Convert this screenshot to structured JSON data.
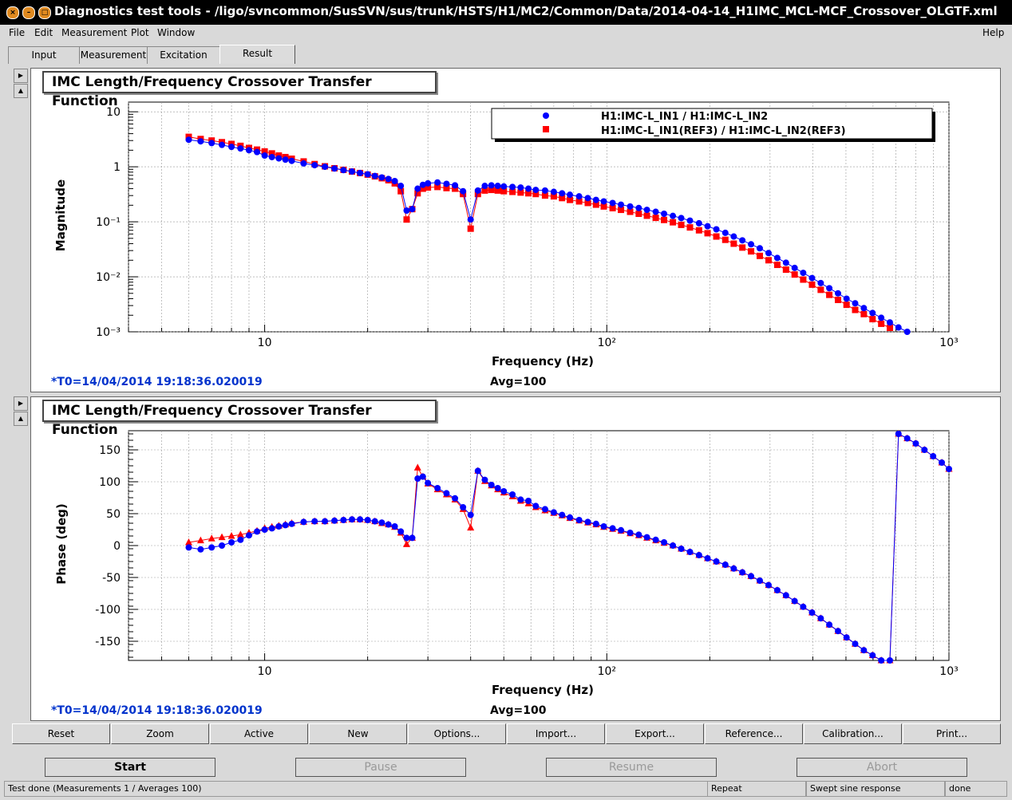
{
  "window": {
    "title": "Diagnostics test tools - /ligo/svncommon/SusSVN/sus/trunk/HSTS/H1/MC2/Common/Data/2014-04-14_H1IMC_MCL-MCF_Crossover_OLGTF.xml"
  },
  "menu": {
    "file": "File",
    "edit": "Edit",
    "measurement": "Measurement",
    "plot": "Plot",
    "window": "Window",
    "help": "Help"
  },
  "tabs": [
    "Input",
    "Measurement",
    "Excitation",
    "Result"
  ],
  "panel1": {
    "title": "IMC Length/Frequency Crossover Transfer Function",
    "ylabel": "Magnitude",
    "xlabel": "Frequency (Hz)",
    "t0": "*T0=14/04/2014 19:18:36.020019",
    "avg": "Avg=100"
  },
  "panel2": {
    "title": "IMC Length/Frequency Crossover Transfer Function",
    "ylabel": "Phase (deg)",
    "xlabel": "Frequency (Hz)",
    "t0": "*T0=14/04/2014 19:18:36.020019",
    "avg": "Avg=100"
  },
  "legend": {
    "series1": "H1:IMC-L_IN1 / H1:IMC-L_IN2",
    "series2": "H1:IMC-L_IN1(REF3) / H1:IMC-L_IN2(REF3)"
  },
  "buttons": [
    "Reset",
    "Zoom",
    "Active",
    "New",
    "Options...",
    "Import...",
    "Export...",
    "Reference...",
    "Calibration...",
    "Print..."
  ],
  "controls": {
    "start": "Start",
    "pause": "Pause",
    "resume": "Resume",
    "abort": "Abort"
  },
  "status": {
    "main": "Test done (Measurements 1 / Averages 100)",
    "mode": "Repeat",
    "type": "Swept sine response",
    "state": "done"
  },
  "colors": {
    "series1": "#0000ff",
    "series2": "#ff0000",
    "t0": "#0033cc"
  },
  "chart_data": [
    {
      "type": "scatter",
      "title": "IMC Length/Frequency Crossover Transfer Function",
      "xlabel": "Frequency (Hz)",
      "ylabel": "Magnitude",
      "xscale": "log",
      "yscale": "log",
      "xlim": [
        4,
        1000
      ],
      "ylim": [
        0.001,
        15
      ],
      "xticks": [
        "10",
        "10²",
        "10³"
      ],
      "yticks": [
        "10",
        "1",
        "10⁻¹",
        "10⁻²",
        "10⁻³"
      ],
      "grid": true,
      "legend": "top-right",
      "series": [
        {
          "name": "H1:IMC-L_IN1 / H1:IMC-L_IN2",
          "marker": "circle",
          "x": [
            6,
            6.5,
            7,
            7.5,
            8,
            8.5,
            9,
            9.5,
            10,
            10.5,
            11,
            11.5,
            12,
            13,
            14,
            15,
            16,
            17,
            18,
            19,
            20,
            21,
            22,
            23,
            24,
            25,
            26,
            27,
            28,
            29,
            30,
            32,
            34,
            36,
            38,
            40,
            42,
            44,
            46,
            48,
            50,
            53,
            56,
            59,
            62,
            66,
            70,
            74,
            78,
            83,
            88,
            93,
            98,
            104,
            110,
            117,
            124,
            131,
            139,
            147,
            156,
            165,
            175,
            186,
            197,
            209,
            222,
            235,
            249,
            264,
            280,
            297,
            315,
            334,
            354,
            375,
            398,
            422,
            447,
            474,
            502,
            532,
            564,
            598,
            634,
            672,
            712,
            755,
            800
          ],
          "y": [
            3.1,
            2.9,
            2.7,
            2.5,
            2.3,
            2.15,
            2.0,
            1.85,
            1.6,
            1.5,
            1.42,
            1.35,
            1.28,
            1.15,
            1.07,
            1.0,
            0.93,
            0.87,
            0.82,
            0.77,
            0.73,
            0.68,
            0.64,
            0.6,
            0.55,
            0.45,
            0.16,
            0.17,
            0.4,
            0.47,
            0.5,
            0.52,
            0.49,
            0.46,
            0.36,
            0.11,
            0.37,
            0.45,
            0.46,
            0.45,
            0.44,
            0.43,
            0.42,
            0.4,
            0.38,
            0.37,
            0.35,
            0.33,
            0.31,
            0.29,
            0.27,
            0.25,
            0.235,
            0.22,
            0.205,
            0.19,
            0.178,
            0.165,
            0.152,
            0.14,
            0.128,
            0.117,
            0.105,
            0.094,
            0.083,
            0.073,
            0.063,
            0.054,
            0.046,
            0.039,
            0.033,
            0.027,
            0.022,
            0.018,
            0.0145,
            0.0118,
            0.0095,
            0.0077,
            0.0062,
            0.005,
            0.004,
            0.0033,
            0.0027,
            0.0022,
            0.0018,
            0.00148,
            0.0012,
            0.001,
            0.00083
          ]
        },
        {
          "name": "H1:IMC-L_IN1(REF3) / H1:IMC-L_IN2(REF3)",
          "marker": "square",
          "x": [
            6,
            6.5,
            7,
            7.5,
            8,
            8.5,
            9,
            9.5,
            10,
            10.5,
            11,
            11.5,
            12,
            13,
            14,
            15,
            16,
            17,
            18,
            19,
            20,
            21,
            22,
            23,
            24,
            25,
            26,
            27,
            28,
            29,
            30,
            32,
            34,
            36,
            38,
            40,
            42,
            44,
            46,
            48,
            50,
            53,
            56,
            59,
            62,
            66,
            70,
            74,
            78,
            83,
            88,
            93,
            98,
            104,
            110,
            117,
            124,
            131,
            139,
            147,
            156,
            165,
            175,
            186,
            197,
            209,
            222,
            235,
            249,
            264,
            280,
            297,
            315,
            334,
            354,
            375,
            398,
            422,
            447,
            474,
            502,
            532,
            564,
            598,
            634,
            672,
            712,
            755
          ],
          "y": [
            3.5,
            3.2,
            3.0,
            2.8,
            2.6,
            2.4,
            2.2,
            2.05,
            1.9,
            1.75,
            1.6,
            1.5,
            1.4,
            1.25,
            1.12,
            1.02,
            0.94,
            0.88,
            0.82,
            0.77,
            0.72,
            0.67,
            0.62,
            0.57,
            0.5,
            0.36,
            0.11,
            0.17,
            0.33,
            0.4,
            0.42,
            0.43,
            0.41,
            0.4,
            0.32,
            0.075,
            0.32,
            0.37,
            0.38,
            0.37,
            0.36,
            0.35,
            0.34,
            0.33,
            0.32,
            0.3,
            0.29,
            0.27,
            0.25,
            0.235,
            0.22,
            0.205,
            0.19,
            0.177,
            0.165,
            0.152,
            0.14,
            0.129,
            0.118,
            0.108,
            0.098,
            0.088,
            0.079,
            0.07,
            0.062,
            0.054,
            0.047,
            0.04,
            0.034,
            0.029,
            0.024,
            0.02,
            0.0165,
            0.0135,
            0.011,
            0.0089,
            0.0072,
            0.0058,
            0.0047,
            0.0038,
            0.0031,
            0.0025,
            0.0021,
            0.0017,
            0.0014,
            0.00118,
            0.00098,
            0.0008
          ]
        }
      ]
    },
    {
      "type": "scatter",
      "title": "IMC Length/Frequency Crossover Transfer Function",
      "xlabel": "Frequency (Hz)",
      "ylabel": "Phase (deg)",
      "xscale": "log",
      "xlim": [
        4,
        1000
      ],
      "ylim": [
        -180,
        180
      ],
      "xticks": [
        "10",
        "10²",
        "10³"
      ],
      "yticks": [
        "150",
        "100",
        "50",
        "0",
        "-50",
        "-100",
        "-150"
      ],
      "grid": true,
      "series": [
        {
          "name": "H1:IMC-L_IN1 / H1:IMC-L_IN2",
          "marker": "circle",
          "x": [
            6,
            6.5,
            7,
            7.5,
            8,
            8.5,
            9,
            9.5,
            10,
            10.5,
            11,
            11.5,
            12,
            13,
            14,
            15,
            16,
            17,
            18,
            19,
            20,
            21,
            22,
            23,
            24,
            25,
            26,
            27,
            28,
            29,
            30,
            32,
            34,
            36,
            38,
            40,
            42,
            44,
            46,
            48,
            50,
            53,
            56,
            59,
            62,
            66,
            70,
            74,
            78,
            83,
            88,
            93,
            98,
            104,
            110,
            117,
            124,
            131,
            139,
            147,
            156,
            165,
            175,
            186,
            197,
            209,
            222,
            235,
            249,
            264,
            280,
            297,
            315,
            334,
            354,
            375,
            398,
            422,
            447,
            474,
            502,
            532,
            564,
            598,
            634,
            672,
            712,
            755,
            800,
            848,
            899,
            953,
            1000
          ],
          "y": [
            -3,
            -6,
            -3,
            0,
            5,
            9,
            16,
            22,
            25,
            27,
            30,
            32,
            34,
            37,
            38,
            38,
            39,
            40,
            41,
            41,
            40,
            38,
            36,
            33,
            30,
            22,
            12,
            12,
            105,
            108,
            98,
            90,
            82,
            74,
            60,
            48,
            117,
            103,
            95,
            90,
            85,
            80,
            72,
            70,
            62,
            57,
            52,
            48,
            44,
            40,
            37,
            34,
            30,
            27,
            24,
            20,
            17,
            13,
            9,
            5,
            0,
            -5,
            -10,
            -15,
            -20,
            -25,
            -30,
            -36,
            -42,
            -48,
            -55,
            -62,
            -70,
            -78,
            -87,
            -96,
            -105,
            -114,
            -124,
            -134,
            -144,
            -154,
            -164,
            -172,
            -180,
            -180,
            175,
            168,
            160,
            150,
            140,
            130,
            120
          ]
        },
        {
          "name": "H1:IMC-L_IN1(REF3) / H1:IMC-L_IN2(REF3)",
          "marker": "triangle",
          "x": [
            6,
            6.5,
            7,
            7.5,
            8,
            8.5,
            9,
            9.5,
            10,
            10.5,
            11,
            11.5,
            12,
            13,
            14,
            15,
            16,
            17,
            18,
            19,
            20,
            21,
            22,
            23,
            24,
            25,
            26,
            27,
            28,
            29,
            30,
            32,
            34,
            36,
            38,
            40,
            42,
            44,
            46,
            48,
            50,
            53,
            56,
            59,
            62,
            66,
            70,
            74,
            78,
            83,
            88,
            93,
            98,
            104,
            110,
            117,
            124,
            131,
            139,
            147,
            156,
            165,
            175,
            186,
            197,
            209,
            222,
            235,
            249,
            264,
            280,
            297,
            315,
            334,
            354,
            375,
            398,
            422,
            447,
            474,
            502,
            532,
            564,
            598,
            634,
            672,
            712,
            755,
            800,
            848,
            899,
            953,
            1000
          ],
          "y": [
            5,
            8,
            11,
            13,
            15,
            17,
            20,
            23,
            27,
            29,
            31,
            33,
            35,
            37,
            38,
            38,
            39,
            40,
            41,
            41,
            40,
            38,
            35,
            33,
            29,
            20,
            2,
            12,
            122,
            108,
            97,
            88,
            80,
            72,
            57,
            28,
            117,
            101,
            94,
            88,
            83,
            77,
            70,
            66,
            60,
            55,
            51,
            47,
            43,
            39,
            36,
            33,
            29,
            26,
            23,
            19,
            16,
            12,
            8,
            4,
            0,
            -5,
            -10,
            -15,
            -20,
            -25,
            -30,
            -36,
            -42,
            -48,
            -55,
            -62,
            -70,
            -78,
            -87,
            -96,
            -105,
            -114,
            -124,
            -134,
            -144,
            -154,
            -164,
            -172,
            -180,
            -180,
            175,
            168,
            160,
            150,
            140,
            130,
            120
          ]
        }
      ]
    }
  ]
}
